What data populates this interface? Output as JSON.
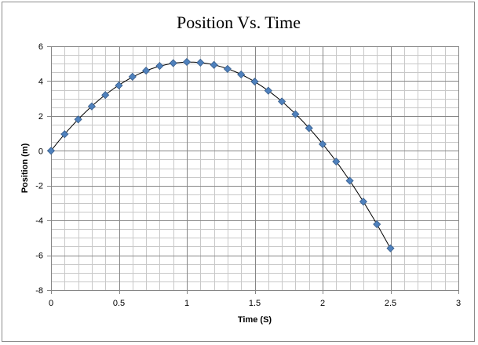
{
  "chart_data": {
    "type": "scatter",
    "title": "Position Vs. Time",
    "xlabel": "Time (S)",
    "ylabel": "Position (m)",
    "xlim": [
      0,
      3
    ],
    "ylim": [
      -8,
      6
    ],
    "x_major_step": 0.5,
    "x_minor_step": 0.1,
    "y_major_step": 2,
    "y_minor_step": 0.5,
    "x_tick_labels": [
      "0",
      "0.5",
      "1",
      "1.5",
      "2",
      "2.5",
      "3"
    ],
    "y_tick_labels": [
      "-8",
      "-6",
      "-4",
      "-2",
      "0",
      "2",
      "4",
      "6"
    ],
    "grid": true,
    "legend": "none",
    "series": [
      {
        "marker": "diamond",
        "marker_color": "#4f81bd",
        "trendline": "polynomial",
        "trendline_color": "#000000",
        "x": [
          0,
          0.1,
          0.2,
          0.3,
          0.4,
          0.5,
          0.6,
          0.7,
          0.8,
          0.9,
          1.0,
          1.1,
          1.2,
          1.3,
          1.4,
          1.5,
          1.6,
          1.7,
          1.8,
          1.9,
          2.0,
          2.1,
          2.2,
          2.3,
          2.4,
          2.5
        ],
        "y": [
          0,
          0.95,
          1.8,
          2.55,
          3.2,
          3.75,
          4.25,
          4.6,
          4.87,
          5.03,
          5.1,
          5.06,
          4.93,
          4.7,
          4.38,
          3.97,
          3.45,
          2.83,
          2.1,
          1.3,
          0.38,
          -0.62,
          -1.72,
          -2.92,
          -4.22,
          -5.6
        ]
      }
    ]
  }
}
